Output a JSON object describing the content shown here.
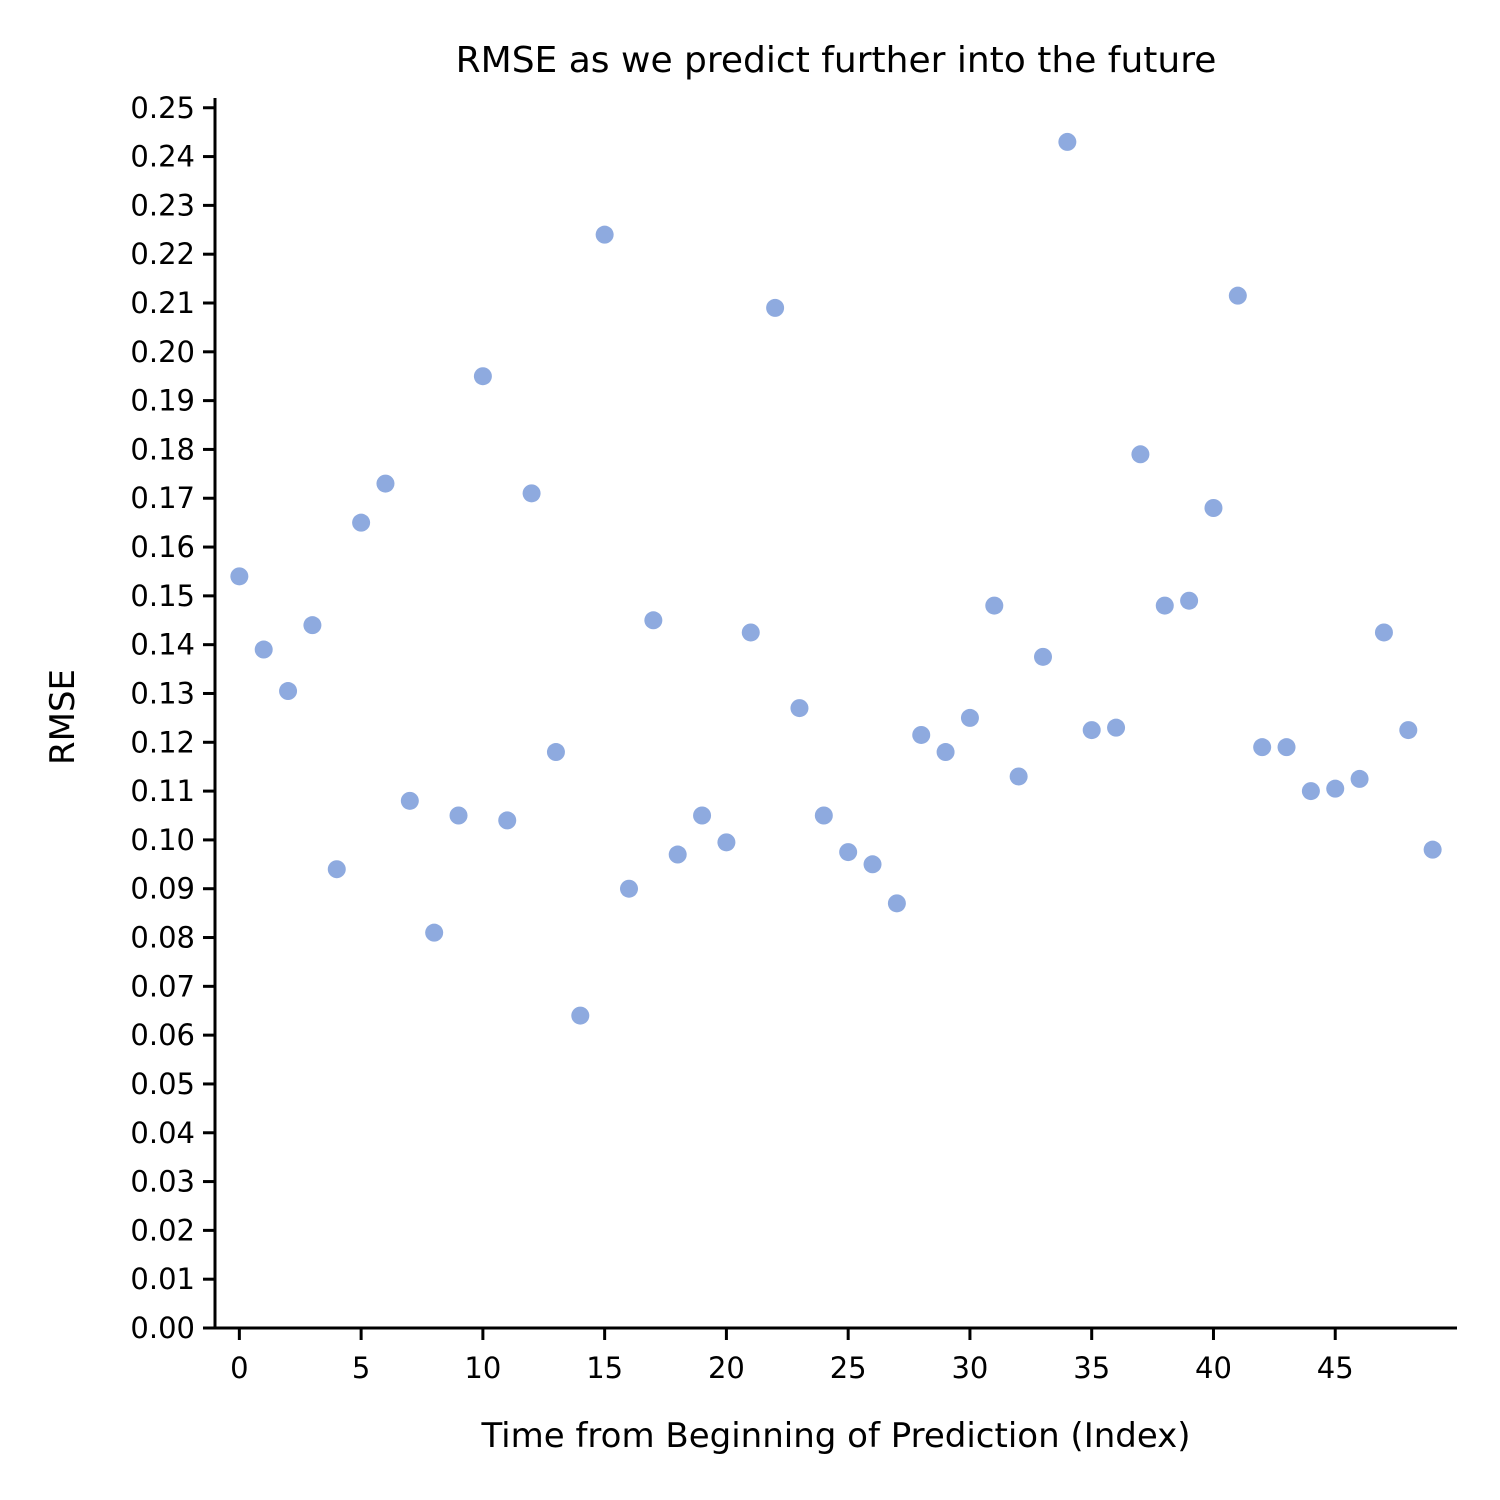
{
  "chart_data": {
    "type": "scatter",
    "title": "RMSE as we predict further into the future",
    "xlabel": "Time from Beginning of Prediction (Index)",
    "ylabel": "RMSE",
    "xlim": [
      -1,
      50
    ],
    "ylim": [
      0,
      0.252
    ],
    "xticks": [
      0,
      5,
      10,
      15,
      20,
      25,
      30,
      35,
      40,
      45
    ],
    "xtick_labels": [
      "0",
      "5",
      "10",
      "15",
      "20",
      "25",
      "30",
      "35",
      "40",
      "45"
    ],
    "yticks": [
      0,
      0.01,
      0.02,
      0.03,
      0.04,
      0.05,
      0.06,
      0.07,
      0.08,
      0.09,
      0.1,
      0.11,
      0.12,
      0.13,
      0.14,
      0.15,
      0.16,
      0.17,
      0.18,
      0.19,
      0.2,
      0.21,
      0.22,
      0.23,
      0.24,
      0.25
    ],
    "ytick_labels": [
      "0.00",
      "0.01",
      "0.02",
      "0.03",
      "0.04",
      "0.05",
      "0.06",
      "0.07",
      "0.08",
      "0.09",
      "0.10",
      "0.11",
      "0.12",
      "0.13",
      "0.14",
      "0.15",
      "0.16",
      "0.17",
      "0.18",
      "0.19",
      "0.20",
      "0.21",
      "0.22",
      "0.23",
      "0.24",
      "0.25"
    ],
    "grid": false,
    "marker_color": "#8eaadf",
    "x": [
      0,
      1,
      2,
      3,
      4,
      5,
      6,
      7,
      8,
      9,
      10,
      11,
      12,
      13,
      14,
      15,
      16,
      17,
      18,
      19,
      20,
      21,
      22,
      23,
      24,
      25,
      26,
      27,
      28,
      29,
      30,
      31,
      32,
      33,
      34,
      35,
      36,
      37,
      38,
      39,
      40,
      41,
      42,
      43,
      44,
      45,
      46,
      47,
      48,
      49
    ],
    "y": [
      0.154,
      0.139,
      0.1305,
      0.144,
      0.094,
      0.165,
      0.173,
      0.108,
      0.081,
      0.105,
      0.195,
      0.104,
      0.171,
      0.118,
      0.064,
      0.224,
      0.09,
      0.145,
      0.097,
      0.105,
      0.0995,
      0.1425,
      0.209,
      0.127,
      0.105,
      0.0975,
      0.095,
      0.087,
      0.1215,
      0.118,
      0.125,
      0.148,
      0.113,
      0.1375,
      0.243,
      0.1225,
      0.123,
      0.179,
      0.148,
      0.149,
      0.168,
      0.2115,
      0.119,
      0.119,
      0.11,
      0.1105,
      0.1125,
      0.1425,
      0.1225,
      0.098
    ]
  }
}
